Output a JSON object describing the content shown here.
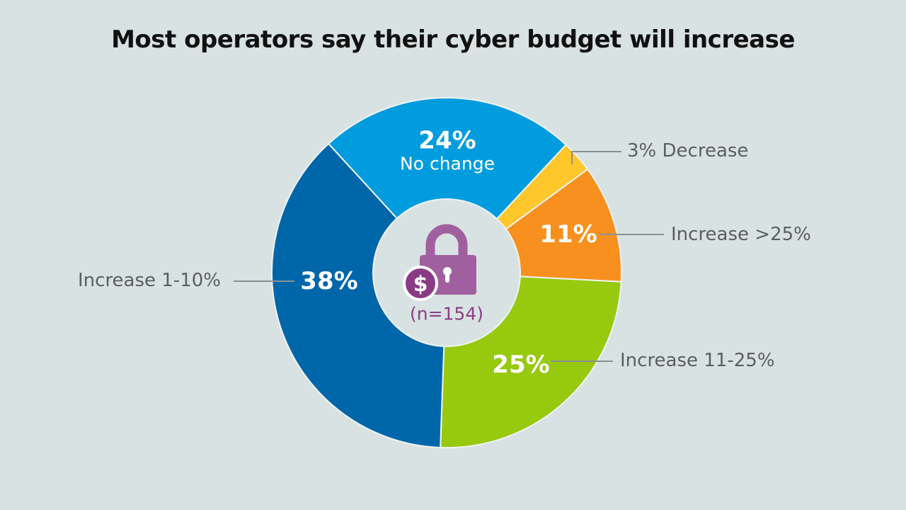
{
  "chart_data": {
    "type": "pie",
    "donut": true,
    "title": "Most operators say their cyber budget will increase",
    "sample": "(n=154)",
    "categories": [
      "No change",
      "Decrease",
      "Increase >25%",
      "Increase 11-25%",
      "Increase 1-10%"
    ],
    "values": [
      24,
      3,
      11,
      25,
      38
    ],
    "value_labels": [
      "24%",
      "3%",
      "11%",
      "25%",
      "38%"
    ],
    "legend_labels": [
      "No change",
      "3% Decrease",
      "Increase >25%",
      "Increase 11-25%",
      "Increase 1-10%"
    ],
    "colors": [
      "#009cde",
      "#ffc72c",
      "#f7901e",
      "#97c90f",
      "#0066aa"
    ],
    "center_icon": "lock-dollar-icon",
    "center_icon_color": "#a0609f"
  }
}
